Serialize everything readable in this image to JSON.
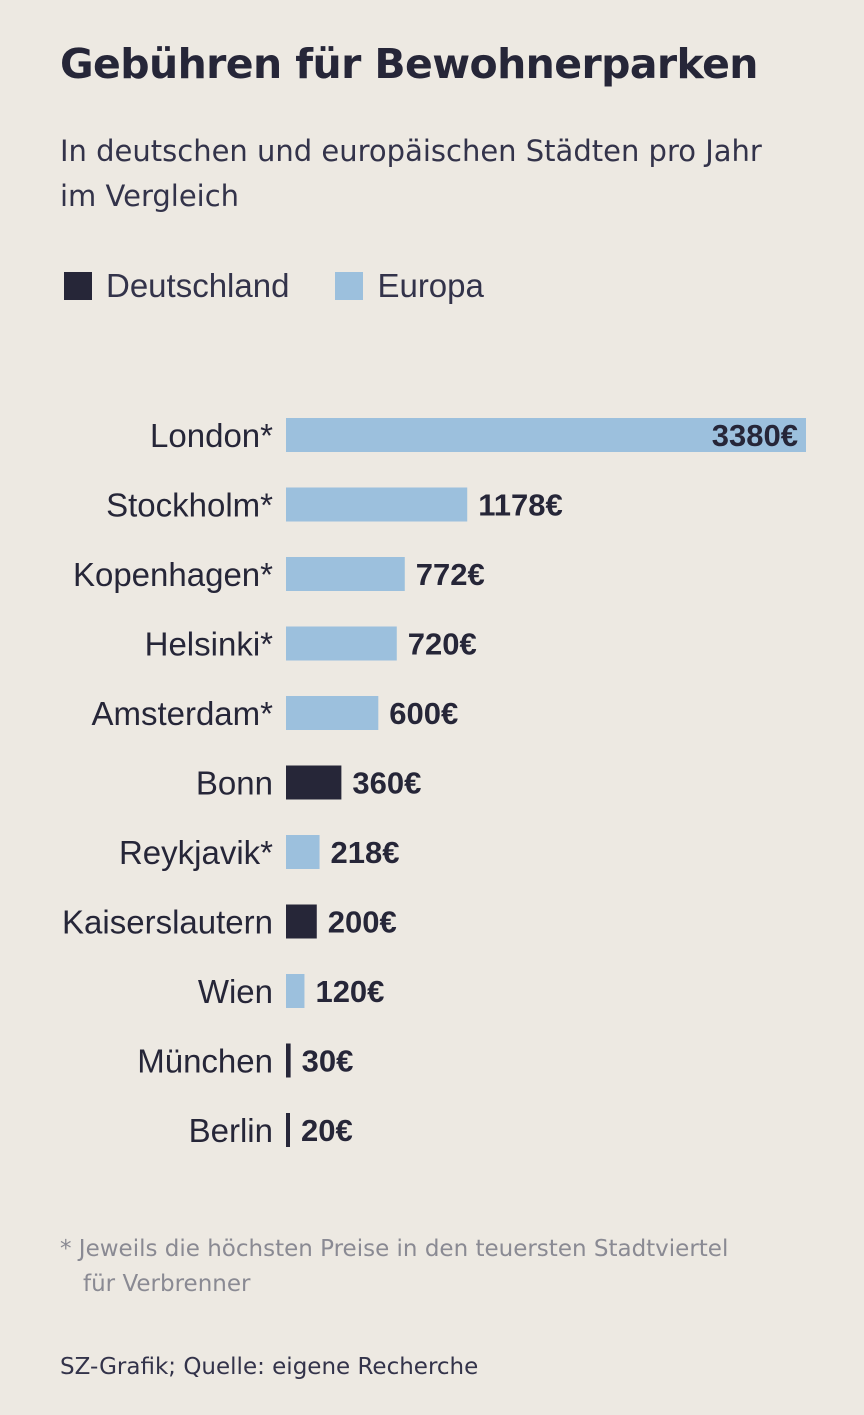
{
  "header": {
    "title": "Gebühren für Bewohnerparken",
    "subtitle": "In deutschen und europäischen Städten pro Jahr im Vergleich"
  },
  "legend": {
    "items": [
      {
        "label": "Deutschland",
        "color": "#262638"
      },
      {
        "label": "Europa",
        "color": "#9cc0dd"
      }
    ]
  },
  "chart_data": {
    "type": "bar",
    "orientation": "horizontal",
    "title": "Gebühren für Bewohnerparken",
    "subtitle": "In deutschen und europäischen Städten pro Jahr im Vergleich",
    "unit": "€",
    "categories": [
      "London*",
      "Stockholm*",
      "Kopenhagen*",
      "Helsinki*",
      "Amsterdam*",
      "Bonn",
      "Reykjavik*",
      "Kaiserslautern",
      "Wien",
      "München",
      "Berlin"
    ],
    "values": [
      3380,
      1178,
      772,
      720,
      600,
      360,
      218,
      200,
      120,
      30,
      20
    ],
    "value_labels": [
      "3380€",
      "1178€",
      "772€",
      "720€",
      "600€",
      "360€",
      "218€",
      "200€",
      "120€",
      "30€",
      "20€"
    ],
    "groups": [
      "Europa",
      "Europa",
      "Europa",
      "Europa",
      "Europa",
      "Deutschland",
      "Europa",
      "Deutschland",
      "Europa",
      "Deutschland",
      "Deutschland"
    ],
    "group_colors": {
      "Deutschland": "#262638",
      "Europa": "#9cc0dd"
    },
    "xlim": [
      0,
      3380
    ],
    "grid": false,
    "legend_position": "top-left"
  },
  "footer": {
    "footnote_line1": "* Jeweils die höchsten Preise in den teuersten Stadtviertel",
    "footnote_line2": "für Verbrenner",
    "source": "SZ-Grafik; Quelle: eigene Recherche"
  }
}
